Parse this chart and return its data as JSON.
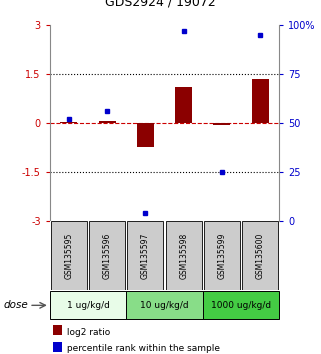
{
  "title": "GDS2924 / 19072",
  "samples": [
    "GSM135595",
    "GSM135596",
    "GSM135597",
    "GSM135598",
    "GSM135599",
    "GSM135600"
  ],
  "log2_ratio": [
    0.02,
    0.05,
    -0.72,
    1.1,
    -0.05,
    1.35
  ],
  "percentile_rank": [
    52,
    56,
    4,
    97,
    25,
    95
  ],
  "ylim_left": [
    -3,
    3
  ],
  "ylim_right": [
    0,
    100
  ],
  "yticks_left": [
    -3,
    -1.5,
    0,
    1.5,
    3
  ],
  "yticks_right": [
    0,
    25,
    50,
    75,
    100
  ],
  "ytick_labels_right": [
    "0",
    "25",
    "50",
    "75",
    "100%"
  ],
  "hlines": [
    1.5,
    -1.5
  ],
  "hline_zero_color": "#cc0000",
  "bar_color": "#8b0000",
  "dot_color": "#0000cc",
  "dose_groups": [
    {
      "label": "1 ug/kg/d",
      "start": 0,
      "end": 2,
      "color": "#e8fce8"
    },
    {
      "label": "10 ug/kg/d",
      "start": 2,
      "end": 4,
      "color": "#88dd88"
    },
    {
      "label": "1000 ug/kg/d",
      "start": 4,
      "end": 6,
      "color": "#44cc44"
    }
  ],
  "dose_label": "dose",
  "legend_bar_label": "log2 ratio",
  "legend_dot_label": "percentile rank within the sample",
  "sample_box_color": "#cccccc",
  "background_color": "#ffffff"
}
